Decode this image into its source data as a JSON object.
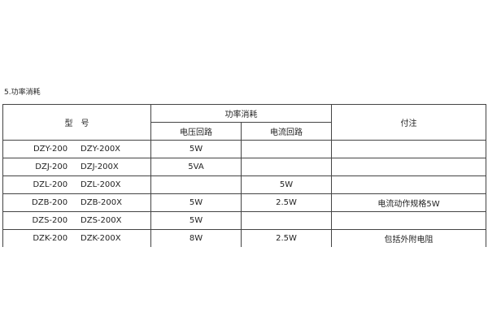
{
  "section_title": "5.功率消耗",
  "header": {
    "model": "型　号",
    "power": "功率消耗",
    "voltage_circuit": "电压回路",
    "current_circuit": "电流回路",
    "note": "付注"
  },
  "rows": [
    {
      "model": "DZY-200     DZY-200X",
      "voltage": "5W",
      "current": "",
      "note": ""
    },
    {
      "model": "DZJ-200     DZJ-200X",
      "voltage": "5VA",
      "current": "",
      "note": ""
    },
    {
      "model": "DZL-200     DZL-200X",
      "voltage": "",
      "current": "5W",
      "note": ""
    },
    {
      "model": "DZB-200     DZB-200X",
      "voltage": "5W",
      "current": "2.5W",
      "note": "电流动作规格5W"
    },
    {
      "model": "DZS-200     DZS-200X",
      "voltage": "5W",
      "current": "",
      "note": ""
    },
    {
      "model": "DZK-200     DZK-200X",
      "voltage": "8W",
      "current": "2.5W",
      "note": "包括外附电阻"
    }
  ]
}
